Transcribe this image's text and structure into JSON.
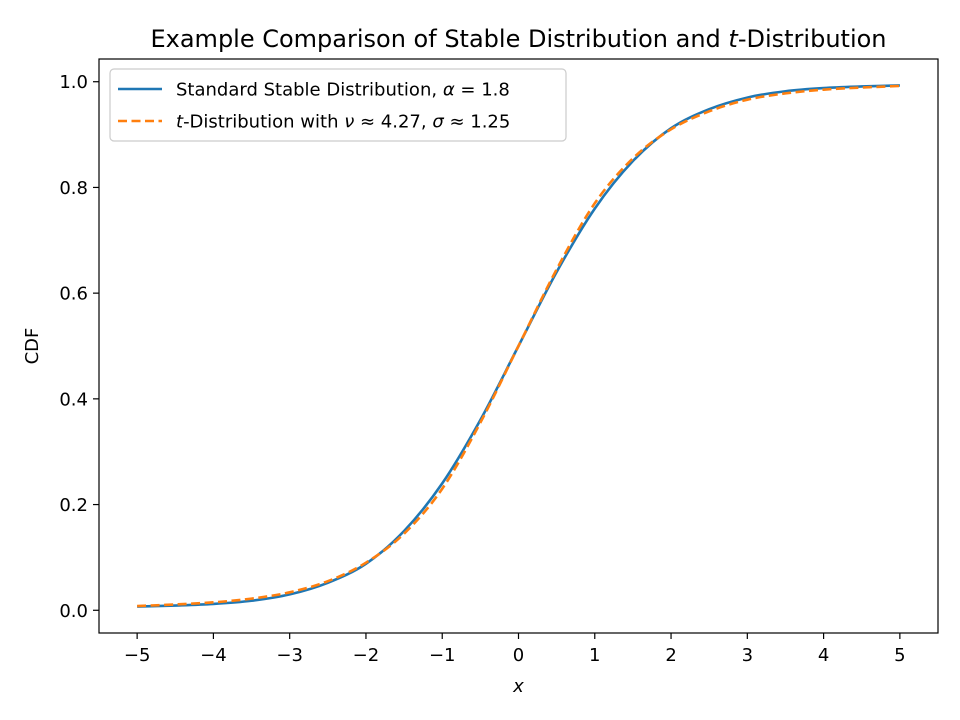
{
  "chart_data": {
    "type": "line",
    "title_parts": [
      {
        "text": "Example Comparison of Stable Distribution and ",
        "italic": false
      },
      {
        "text": "t",
        "italic": true
      },
      {
        "text": "-Distribution",
        "italic": false
      }
    ],
    "xlabel": "x",
    "ylabel": "CDF",
    "xlim": [
      -5.5,
      5.5
    ],
    "ylim": [
      -0.043,
      1.043
    ],
    "xticks": [
      -5,
      -4,
      -3,
      -2,
      -1,
      0,
      1,
      2,
      3,
      4,
      5
    ],
    "xtick_labels": [
      "−5",
      "−4",
      "−3",
      "−2",
      "−1",
      "0",
      "1",
      "2",
      "3",
      "4",
      "5"
    ],
    "yticks": [
      0.0,
      0.2,
      0.4,
      0.6,
      0.8,
      1.0
    ],
    "ytick_labels": [
      "0.0",
      "0.2",
      "0.4",
      "0.6",
      "0.8",
      "1.0"
    ],
    "grid": false,
    "legend_position": "upper-left",
    "x": [
      -5,
      -4.5,
      -4,
      -3.5,
      -3,
      -2.5,
      -2,
      -1.5,
      -1,
      -0.5,
      0,
      0.5,
      1,
      1.5,
      2,
      2.5,
      3,
      3.5,
      4,
      4.5,
      5
    ],
    "series": [
      {
        "name_parts": [
          {
            "text": "Standard Stable Distribution, ",
            "italic": false
          },
          {
            "text": "α",
            "italic": true
          },
          {
            "text": " = 1.8",
            "italic": false
          }
        ],
        "color": "#1f77b4",
        "dash": "solid",
        "values": [
          0.007,
          0.009,
          0.012,
          0.018,
          0.03,
          0.052,
          0.088,
          0.15,
          0.24,
          0.36,
          0.5,
          0.64,
          0.76,
          0.85,
          0.912,
          0.948,
          0.97,
          0.982,
          0.988,
          0.991,
          0.993
        ]
      },
      {
        "name_parts": [
          {
            "text": "t",
            "italic": true
          },
          {
            "text": "-Distribution with ",
            "italic": false
          },
          {
            "text": "ν",
            "italic": true
          },
          {
            "text": " ≈ 4.27, ",
            "italic": false
          },
          {
            "text": "σ",
            "italic": true
          },
          {
            "text": " ≈ 1.25",
            "italic": false
          }
        ],
        "color": "#ff7f0e",
        "dash": "dashed",
        "values": [
          0.008,
          0.011,
          0.015,
          0.022,
          0.034,
          0.055,
          0.09,
          0.145,
          0.23,
          0.355,
          0.5,
          0.645,
          0.77,
          0.855,
          0.91,
          0.944,
          0.966,
          0.978,
          0.985,
          0.989,
          0.992
        ]
      }
    ]
  }
}
